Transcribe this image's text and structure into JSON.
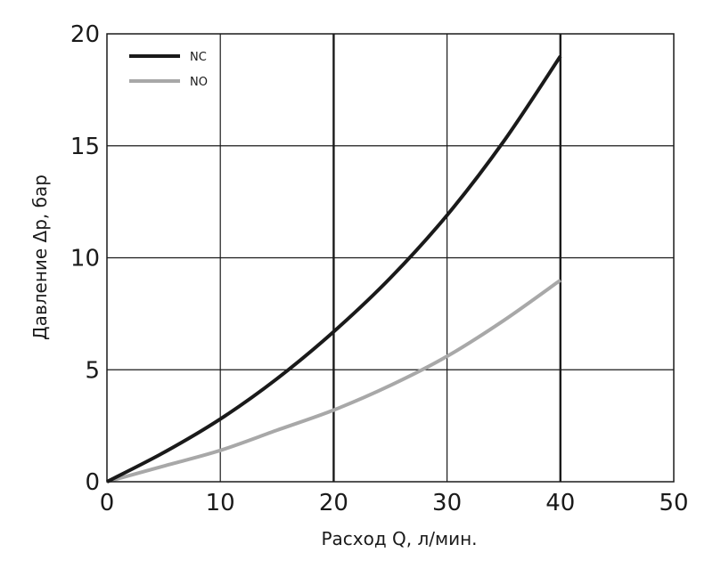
{
  "chart_data": {
    "type": "line",
    "xlabel": "Расход Q, л/мин.",
    "ylabel": "Давление Δp, бар",
    "xlim": [
      0,
      50
    ],
    "ylim": [
      0,
      20
    ],
    "x_ticks": [
      "0",
      "10",
      "20",
      "30",
      "40",
      "50"
    ],
    "y_ticks": [
      "0",
      "5",
      "10",
      "15",
      "20"
    ],
    "grid": true,
    "legend_position": "top-left",
    "series": [
      {
        "name": "NC",
        "color": "#1a1a1a",
        "x": [
          0,
          5,
          10,
          15,
          20,
          25,
          30,
          35,
          40
        ],
        "y": [
          0,
          1.3,
          2.8,
          4.6,
          6.7,
          9.1,
          11.9,
          15.2,
          19.0
        ]
      },
      {
        "name": "NO",
        "color": "#a8a8a8",
        "x": [
          0,
          5,
          10,
          15,
          20,
          25,
          30,
          35,
          40
        ],
        "y": [
          0,
          0.7,
          1.4,
          2.3,
          3.2,
          4.3,
          5.6,
          7.2,
          9.0
        ]
      }
    ]
  }
}
